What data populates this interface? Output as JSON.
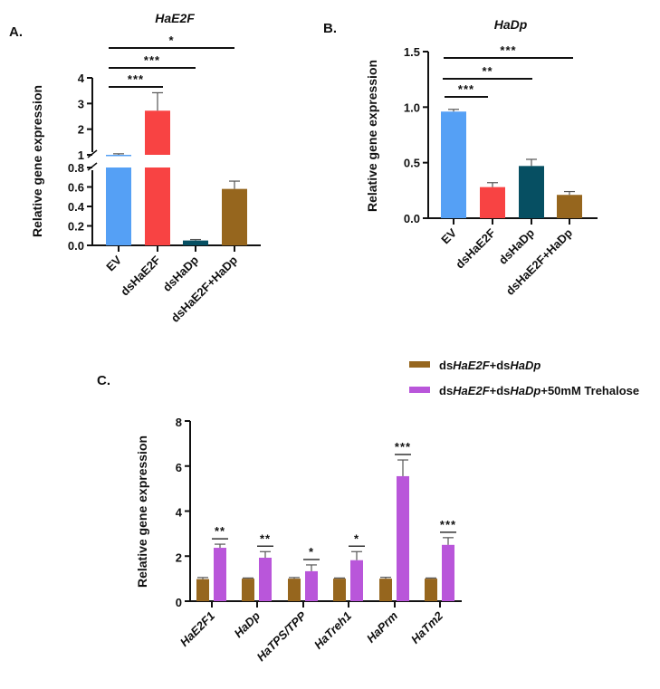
{
  "panels": {
    "a": {
      "label": "A."
    },
    "b": {
      "label": "B."
    },
    "c": {
      "label": "C."
    }
  },
  "colors": {
    "ev": "#55A0F5",
    "dsHaE2F": "#F84343",
    "dsHaDp": "#064F62",
    "combo": "#96661E",
    "trehalose": "#B956DA",
    "axis": "#111111"
  },
  "chart_data": [
    {
      "id": "A",
      "type": "bar",
      "title": "HaE2F",
      "ylabel": "Relative gene expression",
      "xlabel": "",
      "categories": [
        "EV",
        "dsHaE2F",
        "dsHaDp",
        "dsHaE2F+HaDp"
      ],
      "values": [
        1.0,
        2.72,
        0.05,
        0.58
      ],
      "errors": [
        0.04,
        0.7,
        0.01,
        0.08
      ],
      "ylim": [
        0,
        4
      ],
      "axis_break": [
        0.8,
        1.0
      ],
      "yticks_lower": [
        "0.0",
        "0.2",
        "0.4",
        "0.6",
        "0.8"
      ],
      "yticks_upper": [
        "1",
        "2",
        "3",
        "4"
      ],
      "significance": [
        {
          "from": "EV",
          "to": "dsHaE2F",
          "label": "***"
        },
        {
          "from": "EV",
          "to": "dsHaDp",
          "label": "***"
        },
        {
          "from": "EV",
          "to": "dsHaE2F+HaDp",
          "label": "*"
        }
      ],
      "grid": false
    },
    {
      "id": "B",
      "type": "bar",
      "title": "HaDp",
      "ylabel": "Relative gene expression",
      "xlabel": "",
      "categories": [
        "EV",
        "dsHaE2F",
        "dsHaDp",
        "dsHaE2F+HaDp"
      ],
      "values": [
        0.96,
        0.28,
        0.47,
        0.21
      ],
      "errors": [
        0.02,
        0.04,
        0.06,
        0.03
      ],
      "ylim": [
        0,
        1.5
      ],
      "yticks": [
        "0.0",
        "0.5",
        "1.0",
        "1.5"
      ],
      "significance": [
        {
          "from": "EV",
          "to": "dsHaE2F",
          "label": "***"
        },
        {
          "from": "EV",
          "to": "dsHaDp",
          "label": "**"
        },
        {
          "from": "EV",
          "to": "dsHaE2F+HaDp",
          "label": "***"
        }
      ],
      "grid": false
    },
    {
      "id": "C",
      "type": "bar",
      "title": "",
      "ylabel": "Relative gene expression",
      "xlabel": "",
      "categories": [
        "HaE2F1",
        "HaDp",
        "HaTPS/TPP",
        "HaTreh1",
        "HaPrm",
        "HaTm2"
      ],
      "series": [
        {
          "name": "dsHaE2F+dsHaDp",
          "legend_parts": [
            [
              "ds",
              false
            ],
            [
              "HaE2F",
              true
            ],
            [
              "+ds",
              false
            ],
            [
              "HaDp",
              true
            ]
          ],
          "values": [
            0.98,
            1.0,
            1.0,
            1.0,
            1.0,
            1.0
          ],
          "errors": [
            0.07,
            0.03,
            0.05,
            0.03,
            0.06,
            0.03
          ]
        },
        {
          "name": "dsHaE2F+dsHaDp+50mM Trehalose",
          "legend_parts": [
            [
              "ds",
              false
            ],
            [
              "HaE2F",
              true
            ],
            [
              "+ds",
              false
            ],
            [
              "HaDp",
              true
            ],
            [
              "+50mM Trehalose",
              false
            ]
          ],
          "values": [
            2.37,
            1.93,
            1.33,
            1.82,
            5.55,
            2.5
          ],
          "errors": [
            0.16,
            0.27,
            0.28,
            0.38,
            0.72,
            0.32
          ]
        }
      ],
      "significance": [
        "**",
        "**",
        "*",
        "*",
        "***",
        "***"
      ],
      "ylim": [
        0,
        8
      ],
      "yticks": [
        "0",
        "2",
        "4",
        "6",
        "8"
      ],
      "legend": "top-right",
      "grid": false
    }
  ]
}
